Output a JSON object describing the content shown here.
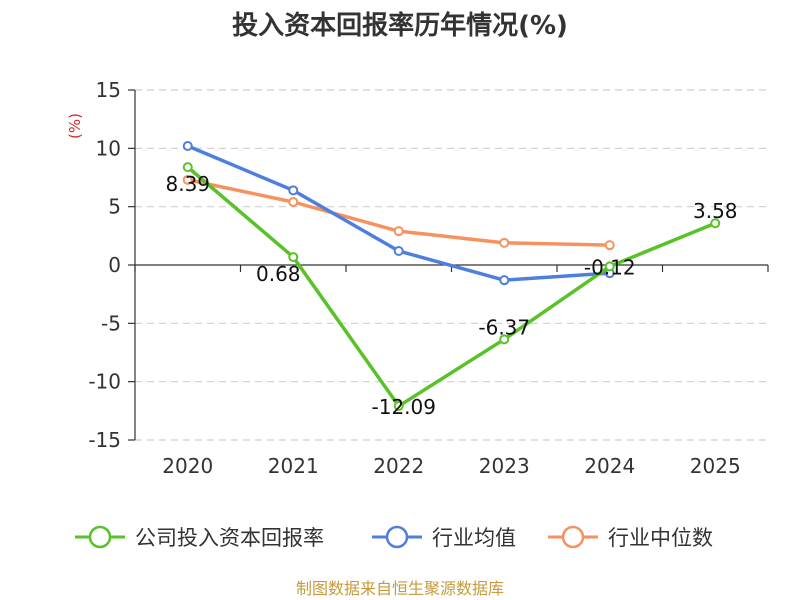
{
  "chart_data": {
    "type": "line",
    "title": "投入资本回报率历年情况(%)",
    "ylabel": "(%)",
    "xlabel": "",
    "categories": [
      "2020",
      "2021",
      "2022",
      "2023",
      "2024",
      "2025"
    ],
    "ylim": [
      -15,
      15
    ],
    "yticks": [
      15,
      10,
      5,
      0,
      -5,
      -10,
      -15
    ],
    "grid": true,
    "legend_position": "bottom",
    "series": [
      {
        "name": "公司投入资本回报率",
        "color": "#5ac229",
        "values": [
          8.39,
          0.68,
          -12.09,
          -6.37,
          -0.12,
          3.58
        ],
        "labels": [
          "8.39",
          "0.68",
          "-12.09",
          "-6.37",
          "-0.12",
          "3.58"
        ]
      },
      {
        "name": "行业均值",
        "color": "#4f7fdc",
        "values": [
          10.2,
          6.4,
          1.2,
          -1.3,
          -0.7,
          null
        ]
      },
      {
        "name": "行业中位数",
        "color": "#f6925f",
        "values": [
          7.3,
          5.4,
          2.9,
          1.9,
          1.7,
          null
        ]
      }
    ]
  },
  "source": "制图数据来自恒生聚源数据库"
}
